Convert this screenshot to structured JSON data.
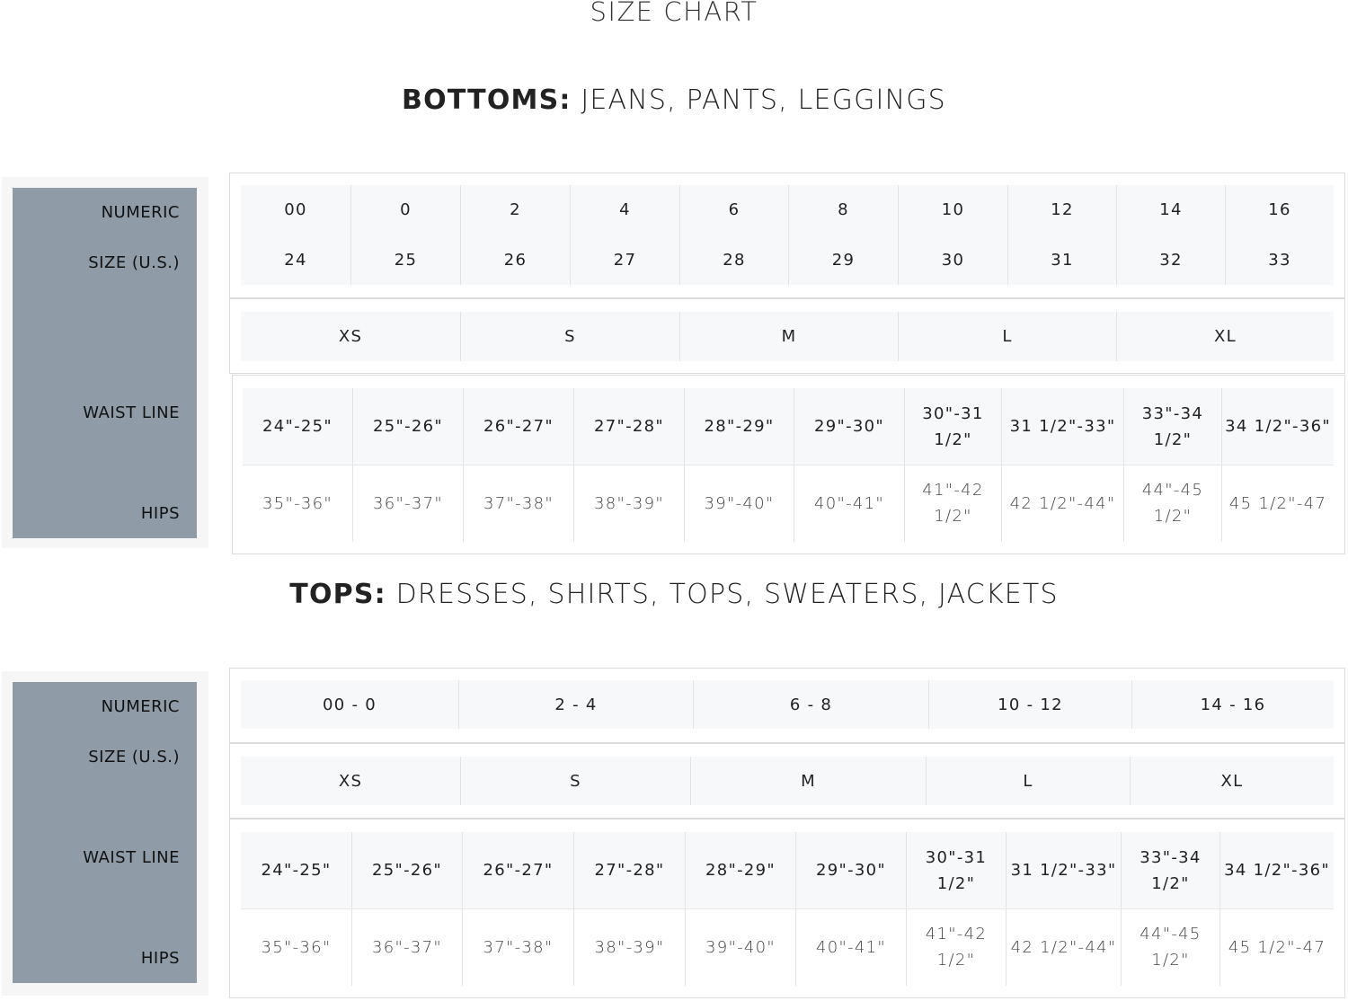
{
  "title": "SIZE CHART",
  "colors": {
    "label_panel": "#8f9ca8",
    "cell_shade": "#f7f8fa"
  },
  "sections": [
    {
      "heading_bold": "BOTTOMS:",
      "heading_rest": " JEANS, PANTS, LEGGINGS",
      "labels": {
        "numeric": "NUMERIC",
        "size": "SIZE (U.S.)",
        "waist": "WAIST LINE",
        "hips": "HIPS"
      },
      "numeric_top": [
        "00",
        "0",
        "2",
        "4",
        "6",
        "8",
        "10",
        "12",
        "14",
        "16"
      ],
      "numeric_bottom": [
        "24",
        "25",
        "26",
        "27",
        "28",
        "29",
        "30",
        "31",
        "32",
        "33"
      ],
      "letters": [
        "XS",
        "S",
        "M",
        "L",
        "XL"
      ],
      "waist": [
        "24\"-25\"",
        "25\"-26\"",
        "26\"-27\"",
        "27\"-28\"",
        "28\"-29\"",
        "29\"-30\"",
        "30\"-31 1/2\"",
        "31 1/2\"-33\"",
        "33\"-34 1/2\"",
        "34 1/2\"-36\""
      ],
      "hips": [
        "35\"-36\"",
        "36\"-37\"",
        "37\"-38\"",
        "38\"-39\"",
        "39\"-40\"",
        "40\"-41\"",
        "41\"-42 1/2\"",
        "42 1/2\"-44\"",
        "44\"-45 1/2\"",
        "45 1/2\"-47"
      ]
    },
    {
      "heading_bold": "TOPS:",
      "heading_rest": " DRESSES, SHIRTS, TOPS, SWEATERS, JACKETS",
      "labels": {
        "numeric": "NUMERIC",
        "size": "SIZE (U.S.)",
        "waist": "WAIST LINE",
        "hips": "HIPS"
      },
      "numeric_top": [
        "00 - 0",
        "2 - 4",
        "6 - 8",
        "10 - 12",
        "14 - 16"
      ],
      "letters": [
        "XS",
        "S",
        "M",
        "L",
        "XL"
      ],
      "waist": [
        "24\"-25\"",
        "25\"-26\"",
        "26\"-27\"",
        "27\"-28\"",
        "28\"-29\"",
        "29\"-30\"",
        "30\"-31 1/2\"",
        "31 1/2\"-33\"",
        "33\"-34 1/2\"",
        "34 1/2\"-36\""
      ],
      "hips": [
        "35\"-36\"",
        "36\"-37\"",
        "37\"-38\"",
        "38\"-39\"",
        "39\"-40\"",
        "40\"-41\"",
        "41\"-42 1/2\"",
        "42 1/2\"-44\"",
        "44\"-45 1/2\"",
        "45 1/2\"-47"
      ]
    }
  ]
}
